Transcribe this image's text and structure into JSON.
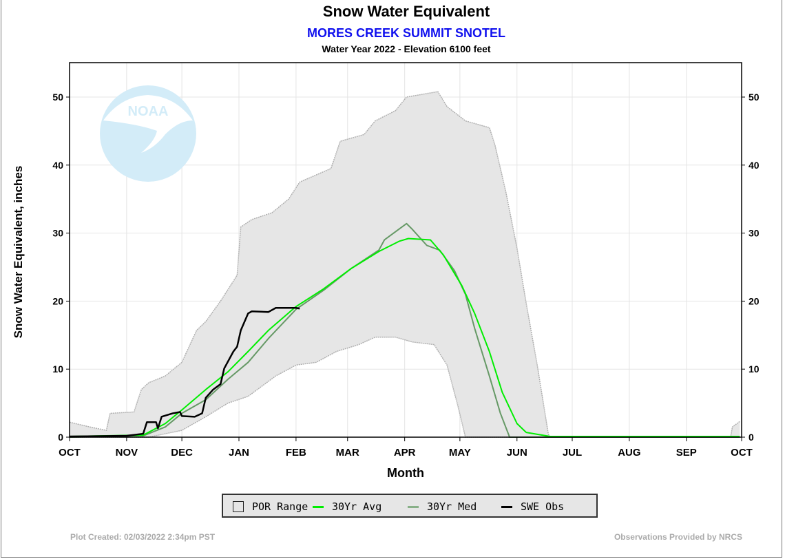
{
  "header": {
    "title": "Snow Water Equivalent",
    "subtitle": "MORES CREEK SUMMIT SNOTEL",
    "subtitle2": "Water Year 2022 -  Elevation 6100 feet"
  },
  "logo": {
    "text": "NOAA",
    "icon": "noaa-logo"
  },
  "footer": {
    "left": "Plot Created: 02/03/2022 2:34pm PST",
    "right": "Observations Provided by NRCS"
  },
  "legend": {
    "items": [
      "POR Range",
      "30Yr Avg",
      "30Yr Med",
      "SWE Obs"
    ]
  },
  "chart_data": {
    "type": "line",
    "title": "Snow Water Equivalent",
    "xlabel": "Month",
    "ylabel": "Snow Water Equivalent, inches",
    "xlim": [
      "2021-10-01",
      "2022-10-01"
    ],
    "ylim": [
      0,
      55
    ],
    "x_ticks": [
      "OCT",
      "NOV",
      "DEC",
      "JAN",
      "FEB",
      "MAR",
      "APR",
      "MAY",
      "JUN",
      "JUL",
      "AUG",
      "SEP",
      "OCT"
    ],
    "x_tick_dates": [
      "2021-10-01",
      "2021-11-01",
      "2021-12-01",
      "2022-01-01",
      "2022-02-01",
      "2022-03-01",
      "2022-04-01",
      "2022-05-01",
      "2022-06-01",
      "2022-07-01",
      "2022-08-01",
      "2022-09-01",
      "2022-10-01"
    ],
    "y_ticks": [
      0,
      10,
      20,
      30,
      40,
      50
    ],
    "grid": true,
    "legend_position": "bottom",
    "colors": {
      "por_fill": "#e6e6e6",
      "por_edge": "#b0b0b0",
      "avg": "#00ee00",
      "median": "#669966",
      "obs": "#000000",
      "subtitle": "#1010ee"
    },
    "por_range": {
      "name": "POR Range",
      "upper": [
        [
          "2021-10-01",
          2.2
        ],
        [
          "2021-10-12",
          1.5
        ],
        [
          "2021-10-21",
          1.0
        ],
        [
          "2021-10-23",
          3.5
        ],
        [
          "2021-11-05",
          3.7
        ],
        [
          "2021-11-09",
          7
        ],
        [
          "2021-11-13",
          8
        ],
        [
          "2021-11-22",
          9
        ],
        [
          "2021-12-01",
          11
        ],
        [
          "2021-12-09",
          15.7
        ],
        [
          "2021-12-14",
          17
        ],
        [
          "2021-12-22",
          20
        ],
        [
          "2021-12-31",
          23.8
        ],
        [
          "2022-01-02",
          30.9
        ],
        [
          "2022-01-08",
          32
        ],
        [
          "2022-01-19",
          33
        ],
        [
          "2022-01-28",
          35
        ],
        [
          "2022-02-03",
          37.5
        ],
        [
          "2022-02-20",
          39.5
        ],
        [
          "2022-02-25",
          43.5
        ],
        [
          "2022-03-10",
          44.5
        ],
        [
          "2022-03-16",
          46.5
        ],
        [
          "2022-03-27",
          48
        ],
        [
          "2022-04-02",
          50
        ],
        [
          "2022-04-19",
          50.8
        ],
        [
          "2022-04-24",
          48.6
        ],
        [
          "2022-05-04",
          46.5
        ],
        [
          "2022-05-17",
          45.5
        ],
        [
          "2022-05-20",
          43
        ],
        [
          "2022-05-26",
          36
        ],
        [
          "2022-06-01",
          27.8
        ],
        [
          "2022-06-06",
          19.7
        ],
        [
          "2022-06-12",
          10.6
        ],
        [
          "2022-06-18",
          0.5
        ],
        [
          "2022-06-19",
          0
        ],
        [
          "2022-09-25",
          0
        ],
        [
          "2022-09-26",
          1.5
        ],
        [
          "2022-09-30",
          2.3
        ]
      ],
      "lower": [
        [
          "2021-10-01",
          0
        ],
        [
          "2021-11-13",
          0
        ],
        [
          "2021-12-01",
          1
        ],
        [
          "2021-12-14",
          3
        ],
        [
          "2021-12-26",
          5
        ],
        [
          "2022-01-06",
          6
        ],
        [
          "2022-01-21",
          9
        ],
        [
          "2022-02-01",
          10.6
        ],
        [
          "2022-02-12",
          11
        ],
        [
          "2022-02-23",
          12.6
        ],
        [
          "2022-03-07",
          13.6
        ],
        [
          "2022-03-16",
          14.7
        ],
        [
          "2022-03-27",
          14.7
        ],
        [
          "2022-04-05",
          14
        ],
        [
          "2022-04-17",
          13.6
        ],
        [
          "2022-04-24",
          10.6
        ],
        [
          "2022-04-30",
          4.5
        ],
        [
          "2022-05-04",
          0
        ],
        [
          "2022-09-30",
          0
        ]
      ]
    },
    "series": [
      {
        "name": "30Yr Avg",
        "values": [
          [
            "2021-10-01",
            0.1
          ],
          [
            "2021-11-10",
            0.3
          ],
          [
            "2021-11-22",
            2
          ],
          [
            "2021-12-01",
            4
          ],
          [
            "2021-12-14",
            7
          ],
          [
            "2021-12-26",
            9.6
          ],
          [
            "2022-01-06",
            12.6
          ],
          [
            "2022-01-17",
            15.7
          ],
          [
            "2022-02-01",
            19.2
          ],
          [
            "2022-02-16",
            21.8
          ],
          [
            "2022-03-03",
            24.8
          ],
          [
            "2022-03-18",
            27.3
          ],
          [
            "2022-03-29",
            28.8
          ],
          [
            "2022-04-03",
            29.2
          ],
          [
            "2022-04-15",
            29
          ],
          [
            "2022-04-22",
            26.8
          ],
          [
            "2022-05-02",
            22.3
          ],
          [
            "2022-05-09",
            18.2
          ],
          [
            "2022-05-17",
            12.6
          ],
          [
            "2022-05-24",
            6.6
          ],
          [
            "2022-06-01",
            2
          ],
          [
            "2022-06-06",
            0.7
          ],
          [
            "2022-06-19",
            0.1
          ],
          [
            "2022-09-30",
            0.1
          ]
        ]
      },
      {
        "name": "30Yr Med",
        "values": [
          [
            "2021-10-01",
            0
          ],
          [
            "2021-11-10",
            0.2
          ],
          [
            "2021-11-22",
            1.5
          ],
          [
            "2021-12-01",
            3.5
          ],
          [
            "2021-12-14",
            5.5
          ],
          [
            "2021-12-26",
            8.5
          ],
          [
            "2022-01-06",
            11
          ],
          [
            "2022-01-17",
            14.5
          ],
          [
            "2022-02-01",
            18.8
          ],
          [
            "2022-02-16",
            21.6
          ],
          [
            "2022-03-03",
            24.8
          ],
          [
            "2022-03-18",
            27.5
          ],
          [
            "2022-03-21",
            29
          ],
          [
            "2022-04-02",
            31.4
          ],
          [
            "2022-04-05",
            30.6
          ],
          [
            "2022-04-13",
            28.2
          ],
          [
            "2022-04-20",
            27.5
          ],
          [
            "2022-04-28",
            24.5
          ],
          [
            "2022-05-04",
            21
          ],
          [
            "2022-05-09",
            16
          ],
          [
            "2022-05-17",
            9
          ],
          [
            "2022-05-23",
            3.5
          ],
          [
            "2022-05-28",
            0
          ],
          [
            "2022-09-30",
            0
          ]
        ]
      },
      {
        "name": "SWE Obs",
        "values": [
          [
            "2021-10-01",
            0.1
          ],
          [
            "2021-11-01",
            0.2
          ],
          [
            "2021-11-10",
            0.5
          ],
          [
            "2021-11-12",
            2.2
          ],
          [
            "2021-11-17",
            2.2
          ],
          [
            "2021-11-18",
            1.3
          ],
          [
            "2021-11-20",
            3
          ],
          [
            "2021-11-26",
            3.5
          ],
          [
            "2021-11-30",
            3.7
          ],
          [
            "2021-12-01",
            3.1
          ],
          [
            "2021-12-08",
            3
          ],
          [
            "2021-12-12",
            3.5
          ],
          [
            "2021-12-14",
            5.8
          ],
          [
            "2021-12-18",
            7
          ],
          [
            "2021-12-22",
            7.8
          ],
          [
            "2021-12-24",
            10.1
          ],
          [
            "2021-12-29",
            12.6
          ],
          [
            "2021-12-31",
            13.3
          ],
          [
            "2022-01-02",
            15.7
          ],
          [
            "2022-01-06",
            18.2
          ],
          [
            "2022-01-08",
            18.5
          ],
          [
            "2022-01-17",
            18.4
          ],
          [
            "2022-01-21",
            19
          ],
          [
            "2022-02-01",
            19
          ],
          [
            "2022-02-03",
            18.9
          ]
        ]
      }
    ]
  }
}
